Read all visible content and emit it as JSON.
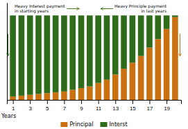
{
  "chart_data": {
    "type": "bar",
    "stacked": true,
    "x": [
      1,
      2,
      3,
      4,
      5,
      6,
      7,
      8,
      9,
      10,
      11,
      12,
      13,
      14,
      15,
      16,
      17,
      18,
      19,
      20
    ],
    "xlim": [
      0.3,
      20.7
    ],
    "xticks": [
      1,
      3,
      5,
      7,
      9,
      11,
      13,
      15,
      17,
      19
    ],
    "ylim": [
      0,
      115
    ],
    "tick_labels": "x",
    "grid": false,
    "legend": "bottom",
    "xlabel": "Years",
    "series": [
      {
        "name": "Principal",
        "color": "#c97010",
        "values": [
          4,
          5,
          6,
          7,
          8,
          9,
          10,
          12,
          14,
          16,
          20,
          24,
          30,
          37,
          44,
          52,
          62,
          72,
          84,
          98
        ]
      },
      {
        "name": "Interst",
        "color": "#2e6b1a",
        "values": [
          96,
          95,
          94,
          93,
          92,
          91,
          90,
          88,
          86,
          84,
          80,
          76,
          70,
          63,
          56,
          48,
          38,
          28,
          16,
          2
        ]
      }
    ],
    "annotations": [
      {
        "text": "Heavy Interest payment\nin starting years",
        "x": 1.2,
        "y": 108,
        "arrow_x": 4.5,
        "arrow_y": 108,
        "color": "#4a7a20"
      },
      {
        "text": "Heavy Principle payment\nin last years",
        "x": 19.0,
        "y": 108,
        "arrow_x": 15.5,
        "arrow_y": 108,
        "color": "#4a7a20"
      }
    ]
  }
}
